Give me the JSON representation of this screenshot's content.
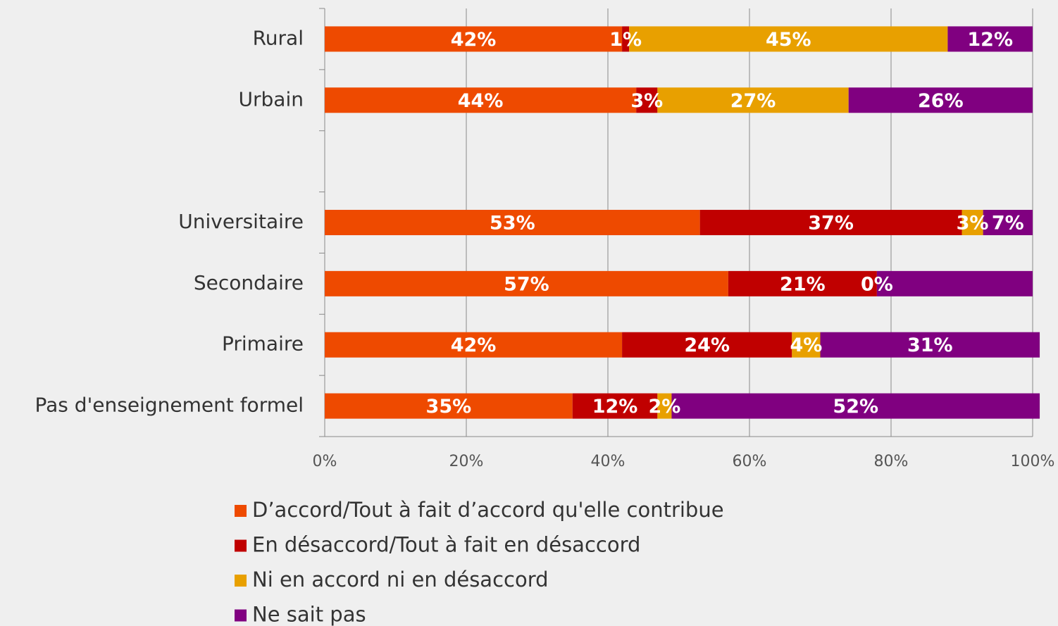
{
  "chart_data": {
    "type": "stacked-barh",
    "categories": [
      "Rural",
      "Urbain",
      null,
      "Universitaire",
      "Secondaire",
      "Primaire",
      "Pas d'enseignement formel"
    ],
    "series": [
      {
        "name": "D’accord/Tout à fait d’accord qu'elle contribue",
        "color": "#ee4a00",
        "values": [
          42,
          44,
          null,
          53,
          57,
          42,
          35
        ],
        "value_labels": [
          "42%",
          "44%",
          null,
          "53%",
          "57%",
          "42%",
          "35%"
        ]
      },
      {
        "name": "En désaccord/Tout à fait en désaccord",
        "color": "#c00000",
        "values": [
          1,
          3,
          null,
          37,
          21,
          24,
          12
        ],
        "value_labels": [
          "1%",
          "3%",
          null,
          "37%",
          "21%",
          "24%",
          "12%"
        ]
      },
      {
        "name": "Ni en accord ni en désaccord",
        "color": "#e8a000",
        "values": [
          45,
          27,
          null,
          3,
          0,
          4,
          2
        ],
        "value_labels": [
          "45%",
          "27%",
          null,
          "3%",
          "0%",
          "4%",
          "2%"
        ]
      },
      {
        "name": "Ne sait pas",
        "color": "#800080",
        "values": [
          12,
          26,
          null,
          7,
          22,
          31,
          52
        ],
        "value_labels": [
          "12%",
          "26%",
          null,
          "7%",
          null,
          "31%",
          "52%"
        ]
      }
    ],
    "xlim": [
      0,
      100
    ],
    "xticks": [
      {
        "value": 0,
        "label": "0%"
      },
      {
        "value": 20,
        "label": "20%"
      },
      {
        "value": 40,
        "label": "40%"
      },
      {
        "value": 60,
        "label": "60%"
      },
      {
        "value": 80,
        "label": "80%"
      },
      {
        "value": 100,
        "label": "100%"
      }
    ],
    "grid": true,
    "legend": "bottom"
  }
}
